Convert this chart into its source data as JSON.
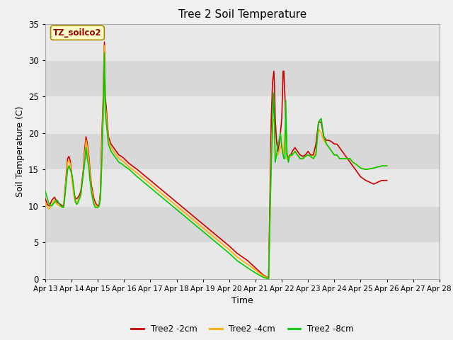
{
  "title": "Tree 2 Soil Temperature",
  "xlabel": "Time",
  "ylabel": "Soil Temperature (C)",
  "ylim": [
    0,
    35
  ],
  "xlim": [
    0,
    15
  ],
  "x_tick_labels": [
    "Apr 13",
    "Apr 14",
    "Apr 15",
    "Apr 16",
    "Apr 17",
    "Apr 18",
    "Apr 19",
    "Apr 20",
    "Apr 21",
    "Apr 22",
    "Apr 23",
    "Apr 24",
    "Apr 25",
    "Apr 26",
    "Apr 27",
    "Apr 28"
  ],
  "annotation_text": "TZ_soilco2",
  "line_colors": [
    "#cc0000",
    "#ffaa00",
    "#00cc00"
  ],
  "line_labels": [
    "Tree2 -2cm",
    "Tree2 -4cm",
    "Tree2 -8cm"
  ],
  "line_width": 1.2,
  "fig_bg_color": "#f0f0f0",
  "plot_bg_color": "#d8d8d8",
  "band_color": "#e8e8e8",
  "series": {
    "red": [
      [
        0.0,
        11.0
      ],
      [
        0.08,
        10.2
      ],
      [
        0.15,
        10.0
      ],
      [
        0.25,
        10.8
      ],
      [
        0.35,
        11.2
      ],
      [
        0.45,
        10.5
      ],
      [
        0.55,
        10.3
      ],
      [
        0.65,
        10.0
      ],
      [
        0.7,
        10.0
      ],
      [
        0.85,
        16.5
      ],
      [
        0.9,
        16.8
      ],
      [
        0.95,
        16.2
      ],
      [
        1.0,
        14.5
      ],
      [
        1.05,
        13.0
      ],
      [
        1.1,
        11.5
      ],
      [
        1.15,
        11.0
      ],
      [
        1.2,
        11.0
      ],
      [
        1.25,
        11.2
      ],
      [
        1.3,
        11.5
      ],
      [
        1.35,
        12.0
      ],
      [
        1.4,
        13.5
      ],
      [
        1.45,
        15.0
      ],
      [
        1.5,
        17.8
      ],
      [
        1.55,
        19.5
      ],
      [
        1.6,
        18.5
      ],
      [
        1.65,
        17.0
      ],
      [
        1.7,
        15.0
      ],
      [
        1.75,
        13.0
      ],
      [
        1.8,
        12.0
      ],
      [
        1.85,
        11.0
      ],
      [
        1.9,
        10.5
      ],
      [
        1.95,
        10.2
      ],
      [
        2.0,
        10.0
      ],
      [
        2.05,
        10.2
      ],
      [
        2.1,
        12.0
      ],
      [
        2.15,
        19.5
      ],
      [
        2.2,
        24.5
      ],
      [
        2.25,
        32.5
      ],
      [
        2.28,
        25.0
      ],
      [
        2.32,
        23.5
      ],
      [
        2.4,
        19.5
      ],
      [
        2.5,
        18.5
      ],
      [
        2.6,
        18.0
      ],
      [
        2.7,
        17.5
      ],
      [
        2.8,
        17.0
      ],
      [
        2.9,
        16.8
      ],
      [
        3.0,
        16.5
      ],
      [
        3.2,
        15.8
      ],
      [
        3.5,
        15.0
      ],
      [
        4.0,
        13.5
      ],
      [
        4.5,
        12.0
      ],
      [
        5.0,
        10.5
      ],
      [
        5.5,
        9.0
      ],
      [
        6.0,
        7.5
      ],
      [
        6.5,
        6.0
      ],
      [
        7.0,
        4.5
      ],
      [
        7.3,
        3.5
      ],
      [
        7.7,
        2.5
      ],
      [
        8.0,
        1.5
      ],
      [
        8.3,
        0.5
      ],
      [
        8.5,
        0.1
      ],
      [
        8.6,
        22.0
      ],
      [
        8.65,
        27.0
      ],
      [
        8.7,
        28.5
      ],
      [
        8.72,
        27.0
      ],
      [
        8.75,
        22.0
      ],
      [
        8.8,
        19.0
      ],
      [
        8.85,
        17.5
      ],
      [
        8.9,
        18.5
      ],
      [
        8.95,
        20.0
      ],
      [
        9.0,
        22.0
      ],
      [
        9.05,
        28.5
      ],
      [
        9.08,
        28.5
      ],
      [
        9.12,
        25.0
      ],
      [
        9.15,
        22.0
      ],
      [
        9.2,
        17.0
      ],
      [
        9.25,
        16.5
      ],
      [
        9.3,
        17.0
      ],
      [
        9.35,
        17.0
      ],
      [
        9.4,
        17.5
      ],
      [
        9.5,
        18.0
      ],
      [
        9.6,
        17.5
      ],
      [
        9.7,
        17.0
      ],
      [
        9.8,
        16.8
      ],
      [
        9.9,
        17.0
      ],
      [
        10.0,
        17.5
      ],
      [
        10.1,
        17.0
      ],
      [
        10.2,
        17.0
      ],
      [
        10.3,
        18.5
      ],
      [
        10.4,
        21.5
      ],
      [
        10.5,
        21.5
      ],
      [
        10.6,
        19.5
      ],
      [
        10.7,
        19.0
      ],
      [
        10.8,
        19.0
      ],
      [
        10.9,
        18.8
      ],
      [
        11.0,
        18.5
      ],
      [
        11.1,
        18.5
      ],
      [
        11.2,
        18.0
      ],
      [
        11.3,
        17.5
      ],
      [
        11.4,
        17.0
      ],
      [
        11.5,
        16.5
      ],
      [
        11.6,
        16.0
      ],
      [
        11.7,
        15.5
      ],
      [
        11.8,
        15.0
      ],
      [
        11.9,
        14.5
      ],
      [
        12.0,
        14.0
      ],
      [
        12.2,
        13.5
      ],
      [
        12.5,
        13.0
      ],
      [
        12.8,
        13.5
      ],
      [
        13.0,
        13.5
      ]
    ],
    "orange": [
      [
        0.0,
        10.5
      ],
      [
        0.08,
        9.8
      ],
      [
        0.15,
        9.6
      ],
      [
        0.25,
        10.2
      ],
      [
        0.35,
        10.8
      ],
      [
        0.45,
        10.2
      ],
      [
        0.55,
        10.0
      ],
      [
        0.65,
        9.8
      ],
      [
        0.7,
        9.8
      ],
      [
        0.85,
        16.0
      ],
      [
        0.9,
        16.2
      ],
      [
        0.95,
        15.8
      ],
      [
        1.0,
        14.0
      ],
      [
        1.05,
        12.5
      ],
      [
        1.1,
        11.2
      ],
      [
        1.15,
        10.5
      ],
      [
        1.2,
        10.5
      ],
      [
        1.25,
        10.8
      ],
      [
        1.3,
        11.2
      ],
      [
        1.35,
        11.5
      ],
      [
        1.4,
        13.0
      ],
      [
        1.45,
        14.5
      ],
      [
        1.5,
        17.0
      ],
      [
        1.55,
        19.0
      ],
      [
        1.6,
        18.0
      ],
      [
        1.65,
        16.5
      ],
      [
        1.7,
        14.5
      ],
      [
        1.75,
        12.5
      ],
      [
        1.8,
        11.5
      ],
      [
        1.85,
        10.5
      ],
      [
        1.9,
        10.2
      ],
      [
        1.95,
        10.0
      ],
      [
        2.0,
        9.8
      ],
      [
        2.05,
        10.0
      ],
      [
        2.1,
        11.5
      ],
      [
        2.15,
        18.0
      ],
      [
        2.2,
        23.5
      ],
      [
        2.25,
        32.0
      ],
      [
        2.28,
        24.0
      ],
      [
        2.32,
        22.5
      ],
      [
        2.4,
        19.0
      ],
      [
        2.5,
        18.0
      ],
      [
        2.6,
        17.5
      ],
      [
        2.7,
        17.0
      ],
      [
        2.8,
        16.5
      ],
      [
        2.9,
        16.3
      ],
      [
        3.0,
        16.0
      ],
      [
        3.2,
        15.3
      ],
      [
        3.5,
        14.5
      ],
      [
        4.0,
        13.0
      ],
      [
        4.5,
        11.5
      ],
      [
        5.0,
        10.0
      ],
      [
        5.5,
        8.5
      ],
      [
        6.0,
        7.0
      ],
      [
        6.5,
        5.5
      ],
      [
        7.0,
        4.0
      ],
      [
        7.3,
        3.0
      ],
      [
        7.7,
        2.0
      ],
      [
        8.0,
        1.2
      ],
      [
        8.3,
        0.4
      ],
      [
        8.5,
        0.05
      ],
      [
        8.6,
        17.0
      ],
      [
        8.65,
        21.5
      ],
      [
        8.7,
        22.0
      ],
      [
        8.72,
        21.0
      ],
      [
        8.75,
        17.0
      ],
      [
        8.8,
        17.0
      ],
      [
        8.85,
        17.0
      ],
      [
        8.9,
        17.5
      ],
      [
        8.95,
        18.0
      ],
      [
        9.0,
        18.5
      ],
      [
        9.05,
        17.0
      ],
      [
        9.08,
        17.5
      ],
      [
        9.12,
        20.0
      ],
      [
        9.15,
        21.5
      ],
      [
        9.2,
        16.5
      ],
      [
        9.25,
        16.5
      ],
      [
        9.3,
        16.8
      ],
      [
        9.35,
        16.8
      ],
      [
        9.4,
        17.0
      ],
      [
        9.5,
        17.5
      ],
      [
        9.6,
        17.0
      ],
      [
        9.7,
        16.5
      ],
      [
        9.8,
        16.5
      ],
      [
        9.9,
        16.8
      ],
      [
        10.0,
        17.0
      ],
      [
        10.1,
        16.8
      ],
      [
        10.2,
        16.5
      ],
      [
        10.3,
        17.5
      ],
      [
        10.4,
        20.5
      ],
      [
        10.5,
        20.0
      ],
      [
        10.6,
        19.0
      ],
      [
        10.7,
        18.5
      ],
      [
        10.8,
        18.0
      ],
      [
        10.9,
        17.5
      ],
      [
        11.0,
        17.0
      ],
      [
        11.1,
        17.0
      ],
      [
        11.2,
        16.5
      ],
      [
        11.3,
        16.5
      ],
      [
        11.4,
        16.5
      ],
      [
        11.5,
        16.5
      ],
      [
        11.6,
        16.5
      ],
      [
        11.7,
        16.0
      ],
      [
        11.8,
        15.8
      ],
      [
        11.9,
        15.5
      ],
      [
        12.0,
        15.2
      ],
      [
        12.2,
        15.0
      ],
      [
        12.5,
        15.2
      ],
      [
        12.8,
        15.5
      ],
      [
        13.0,
        15.5
      ]
    ],
    "green": [
      [
        0.0,
        12.0
      ],
      [
        0.08,
        11.0
      ],
      [
        0.15,
        10.2
      ],
      [
        0.25,
        10.0
      ],
      [
        0.35,
        10.5
      ],
      [
        0.45,
        10.8
      ],
      [
        0.55,
        10.2
      ],
      [
        0.65,
        9.8
      ],
      [
        0.7,
        9.8
      ],
      [
        0.85,
        15.0
      ],
      [
        0.9,
        15.5
      ],
      [
        0.95,
        15.0
      ],
      [
        1.0,
        14.5
      ],
      [
        1.05,
        13.5
      ],
      [
        1.1,
        12.0
      ],
      [
        1.15,
        10.5
      ],
      [
        1.2,
        10.2
      ],
      [
        1.25,
        10.5
      ],
      [
        1.3,
        11.0
      ],
      [
        1.35,
        11.5
      ],
      [
        1.4,
        13.0
      ],
      [
        1.45,
        14.5
      ],
      [
        1.5,
        16.0
      ],
      [
        1.55,
        18.0
      ],
      [
        1.6,
        16.5
      ],
      [
        1.65,
        15.5
      ],
      [
        1.7,
        13.5
      ],
      [
        1.75,
        12.0
      ],
      [
        1.8,
        11.0
      ],
      [
        1.85,
        10.2
      ],
      [
        1.9,
        9.8
      ],
      [
        1.95,
        9.8
      ],
      [
        2.0,
        9.8
      ],
      [
        2.05,
        10.0
      ],
      [
        2.1,
        11.0
      ],
      [
        2.15,
        16.0
      ],
      [
        2.2,
        22.0
      ],
      [
        2.25,
        31.0
      ],
      [
        2.28,
        23.0
      ],
      [
        2.32,
        21.5
      ],
      [
        2.4,
        18.5
      ],
      [
        2.5,
        17.5
      ],
      [
        2.6,
        17.0
      ],
      [
        2.7,
        16.5
      ],
      [
        2.8,
        16.0
      ],
      [
        2.9,
        15.8
      ],
      [
        3.0,
        15.5
      ],
      [
        3.2,
        15.0
      ],
      [
        3.5,
        14.0
      ],
      [
        4.0,
        12.5
      ],
      [
        4.5,
        11.0
      ],
      [
        5.0,
        9.5
      ],
      [
        5.5,
        8.0
      ],
      [
        6.0,
        6.5
      ],
      [
        6.5,
        5.0
      ],
      [
        7.0,
        3.5
      ],
      [
        7.3,
        2.5
      ],
      [
        7.7,
        1.5
      ],
      [
        8.0,
        0.8
      ],
      [
        8.3,
        0.2
      ],
      [
        8.5,
        0.0
      ],
      [
        8.5,
        0.0
      ],
      [
        8.6,
        16.0
      ],
      [
        8.65,
        20.5
      ],
      [
        8.68,
        25.5
      ],
      [
        8.72,
        22.0
      ],
      [
        8.75,
        16.0
      ],
      [
        8.8,
        17.0
      ],
      [
        8.85,
        18.5
      ],
      [
        8.9,
        19.0
      ],
      [
        8.95,
        20.0
      ],
      [
        9.0,
        18.0
      ],
      [
        9.05,
        17.0
      ],
      [
        9.08,
        16.5
      ],
      [
        9.12,
        16.5
      ],
      [
        9.15,
        24.5
      ],
      [
        9.2,
        17.0
      ],
      [
        9.25,
        16.0
      ],
      [
        9.3,
        17.0
      ],
      [
        9.35,
        17.0
      ],
      [
        9.4,
        17.0
      ],
      [
        9.5,
        17.5
      ],
      [
        9.6,
        17.0
      ],
      [
        9.7,
        16.5
      ],
      [
        9.8,
        16.5
      ],
      [
        9.9,
        16.8
      ],
      [
        10.0,
        17.0
      ],
      [
        10.1,
        16.8
      ],
      [
        10.2,
        16.5
      ],
      [
        10.3,
        17.0
      ],
      [
        10.4,
        21.5
      ],
      [
        10.5,
        22.0
      ],
      [
        10.6,
        19.5
      ],
      [
        10.7,
        18.5
      ],
      [
        10.8,
        18.0
      ],
      [
        10.9,
        17.5
      ],
      [
        11.0,
        17.0
      ],
      [
        11.1,
        17.0
      ],
      [
        11.2,
        16.5
      ],
      [
        11.3,
        16.5
      ],
      [
        11.4,
        16.5
      ],
      [
        11.5,
        16.5
      ],
      [
        11.6,
        16.5
      ],
      [
        11.7,
        16.0
      ],
      [
        11.8,
        15.8
      ],
      [
        11.9,
        15.5
      ],
      [
        12.0,
        15.2
      ],
      [
        12.2,
        15.0
      ],
      [
        12.5,
        15.2
      ],
      [
        12.8,
        15.5
      ],
      [
        13.0,
        15.5
      ]
    ]
  }
}
